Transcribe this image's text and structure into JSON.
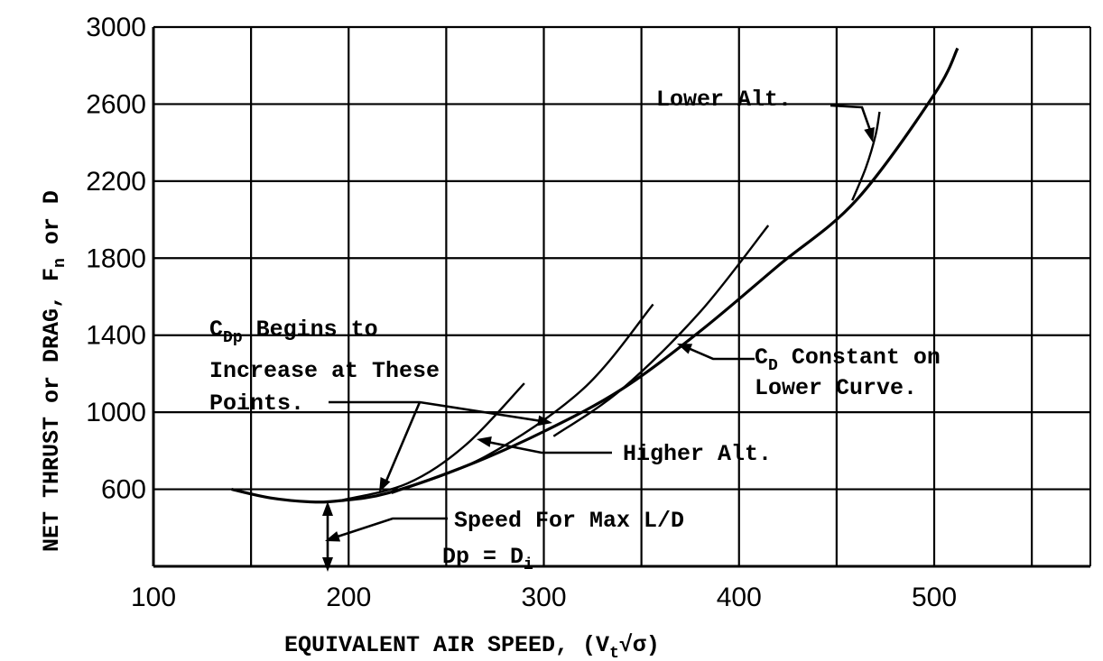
{
  "chart_data": {
    "type": "line",
    "xlabel": {
      "main": "EQUIVALENT AIR SPEED, (V",
      "sub": "t",
      "tail": "√σ)"
    },
    "ylabel": {
      "main": "NET THRUST or DRAG, F",
      "sub": "n",
      "tail": " or D"
    },
    "xlim": [
      100,
      580
    ],
    "ylim": [
      200,
      3000
    ],
    "x_ticks": [
      "100",
      "200",
      "300",
      "400",
      "500"
    ],
    "y_ticks": [
      "600",
      "1000",
      "1400",
      "1800",
      "2200",
      "2600",
      "3000"
    ],
    "grid": true,
    "x_grid": [
      150,
      200,
      250,
      300,
      350,
      400,
      450,
      500,
      550
    ],
    "y_grid": [
      600,
      1000,
      1400,
      1800,
      2200,
      2600,
      3000
    ],
    "series": [
      {
        "role": "drag-curve",
        "x": [
          140,
          160,
          180,
          195,
          220,
          260,
          300,
          340,
          380,
          420,
          460,
          500,
          512
        ],
        "y": [
          600,
          555,
          535,
          540,
          580,
          720,
          900,
          1120,
          1420,
          1760,
          2100,
          2650,
          2890
        ]
      },
      {
        "role": "thrust-curve-1",
        "x": [
          195,
          230,
          260,
          290
        ],
        "y": [
          540,
          630,
          830,
          1150
        ]
      },
      {
        "role": "thrust-curve-2",
        "x": [
          222,
          270,
          320,
          356
        ],
        "y": [
          580,
          770,
          1120,
          1560
        ]
      },
      {
        "role": "thrust-curve-3",
        "x": [
          305,
          340,
          380,
          415
        ],
        "y": [
          875,
          1120,
          1520,
          1970
        ]
      },
      {
        "role": "thrust-curve-4",
        "x": [
          458,
          465,
          470,
          472
        ],
        "y": [
          2100,
          2270,
          2440,
          2560
        ]
      }
    ],
    "annotations": [
      {
        "id": "cdp",
        "lines": [
          {
            "main": "C",
            "sub": "Dp",
            "tail": " Begins to"
          },
          {
            "main": "Increase at These"
          },
          {
            "main": "Points."
          }
        ]
      },
      {
        "id": "cd",
        "lines": [
          {
            "main": "C",
            "sub": "D",
            "tail": " Constant on"
          },
          {
            "main": "Lower Curve."
          }
        ]
      },
      {
        "id": "lower-alt",
        "lines": [
          {
            "main": "Lower Alt."
          }
        ]
      },
      {
        "id": "higher-alt",
        "lines": [
          {
            "main": "Higher Alt."
          }
        ]
      },
      {
        "id": "speed",
        "lines": [
          {
            "main": "Speed For Max L/D"
          },
          {
            "main": "Dp = D",
            "sub": "i"
          }
        ]
      }
    ]
  }
}
